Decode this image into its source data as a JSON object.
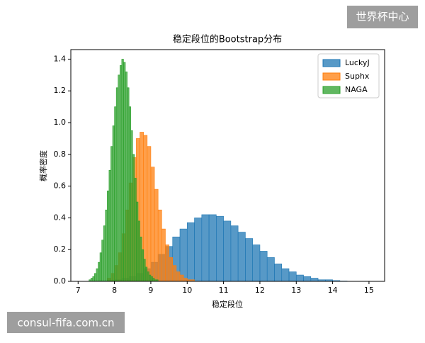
{
  "chart_data": {
    "type": "histogram",
    "title": "稳定段位的Bootstrap分布",
    "x_label": "稳定段位",
    "y_label": "概率密度",
    "xlim": [
      6.8,
      15.43
    ],
    "ylim": [
      0,
      1.46
    ],
    "xticks": [
      7,
      8,
      9,
      10,
      11,
      12,
      13,
      14,
      15
    ],
    "yticks": [
      {
        "value": 0,
        "label": "0.0"
      },
      0.2,
      0.4,
      0.6,
      0.8,
      {
        "value": 1,
        "label": "1.0"
      },
      1.2,
      1.4
    ],
    "legend": "upper right",
    "series": [
      {
        "name": "LuckyJ",
        "color": "#1f77b4",
        "bins": [
          7.6,
          7.8,
          8.0,
          8.2,
          8.4,
          8.6,
          8.8,
          9.0,
          9.2,
          9.4,
          9.6,
          9.8,
          10.0,
          10.2,
          10.4,
          10.6,
          10.8,
          11.0,
          11.2,
          11.4,
          11.6,
          11.8,
          12.0,
          12.2,
          12.4,
          12.6,
          12.8,
          13.0,
          13.2,
          13.4,
          13.6,
          13.8,
          14.0,
          14.2,
          14.4
        ],
        "values": [
          0.002,
          0.005,
          0.01,
          0.02,
          0.03,
          0.05,
          0.08,
          0.12,
          0.17,
          0.22,
          0.28,
          0.33,
          0.37,
          0.4,
          0.42,
          0.42,
          0.41,
          0.38,
          0.35,
          0.31,
          0.27,
          0.23,
          0.19,
          0.15,
          0.11,
          0.08,
          0.06,
          0.04,
          0.03,
          0.02,
          0.01,
          0.01,
          0.005,
          0.002
        ]
      },
      {
        "name": "Suphx",
        "color": "#ff7f0e",
        "bins": [
          7.8,
          7.9,
          8.0,
          8.1,
          8.2,
          8.3,
          8.4,
          8.5,
          8.6,
          8.7,
          8.8,
          8.9,
          9.0,
          9.1,
          9.2,
          9.3,
          9.4,
          9.5,
          9.6,
          9.7,
          9.8,
          9.9,
          10.0,
          10.1,
          10.2
        ],
        "values": [
          0.02,
          0.05,
          0.1,
          0.18,
          0.3,
          0.45,
          0.62,
          0.78,
          0.9,
          0.94,
          0.92,
          0.85,
          0.72,
          0.58,
          0.45,
          0.33,
          0.23,
          0.15,
          0.1,
          0.06,
          0.04,
          0.02,
          0.01,
          0.01
        ]
      },
      {
        "name": "NAGA",
        "color": "#2ca02c",
        "bins": [
          7.3,
          7.35,
          7.4,
          7.45,
          7.5,
          7.55,
          7.6,
          7.65,
          7.7,
          7.75,
          7.8,
          7.85,
          7.9,
          7.95,
          8.0,
          8.05,
          8.1,
          8.15,
          8.2,
          8.25,
          8.3,
          8.35,
          8.4,
          8.45,
          8.5,
          8.55,
          8.6,
          8.65,
          8.7,
          8.75,
          8.8,
          8.85,
          8.9,
          8.95,
          9.0,
          9.05,
          9.1,
          9.15,
          9.2
        ],
        "values": [
          0.01,
          0.02,
          0.03,
          0.05,
          0.08,
          0.12,
          0.18,
          0.26,
          0.35,
          0.45,
          0.57,
          0.7,
          0.85,
          0.98,
          1.1,
          1.22,
          1.3,
          1.36,
          1.4,
          1.38,
          1.32,
          1.22,
          1.1,
          0.95,
          0.8,
          0.65,
          0.5,
          0.38,
          0.28,
          0.2,
          0.14,
          0.09,
          0.06,
          0.04,
          0.03,
          0.02,
          0.01,
          0.01
        ]
      }
    ]
  },
  "watermarks": [
    "世界杯中心",
    "consul-fifa.com.cn"
  ]
}
